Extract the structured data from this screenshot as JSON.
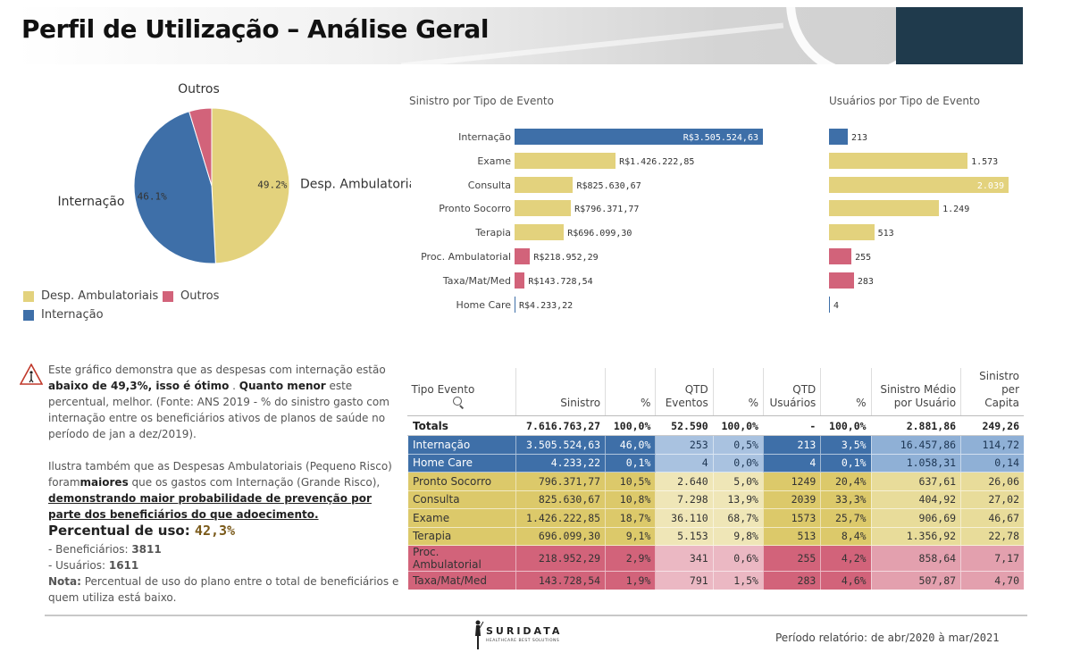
{
  "header": {
    "title": "Perfil de Utilização – Análise Geral"
  },
  "colors": {
    "blue": "#3e6fa8",
    "yellow": "#dcc96a",
    "red": "#d2637a"
  },
  "chart_data": [
    {
      "type": "pie",
      "title": "",
      "slices": [
        {
          "name": "Desp. Ambulatoriais",
          "value": 49.2,
          "label": "49.2%",
          "color": "#e3d27d"
        },
        {
          "name": "Internação",
          "value": 46.1,
          "label": "46.1%",
          "color": "#3e6fa8"
        },
        {
          "name": "Outros",
          "value": 4.7,
          "label": "",
          "color": "#d2637a"
        }
      ],
      "legend": [
        {
          "name": "Desp. Ambulatoriais",
          "color": "#e3d27d"
        },
        {
          "name": "Outros",
          "color": "#d2637a"
        },
        {
          "name": "Internação",
          "color": "#3e6fa8"
        }
      ],
      "legend_position": "bottom-left"
    },
    {
      "type": "bar",
      "orientation": "horizontal",
      "title": "Sinistro por Tipo de Evento",
      "categories": [
        "Internação",
        "Exame",
        "Consulta",
        "Pronto Socorro",
        "Terapia",
        "Proc. Ambulatorial",
        "Taxa/Mat/Med",
        "Home Care"
      ],
      "values": [
        3505524.63,
        1426222.85,
        825630.67,
        796371.77,
        696099.3,
        218952.29,
        143728.54,
        4233.22
      ],
      "labels": [
        "R$3.505.524,63",
        "R$1.426.222,85",
        "R$825.630,67",
        "R$796.371,77",
        "R$696.099,30",
        "R$218.952,29",
        "R$143.728,54",
        "R$4.233,22"
      ],
      "colors": [
        "#3e6fa8",
        "#e3d27d",
        "#e3d27d",
        "#e3d27d",
        "#e3d27d",
        "#d2637a",
        "#d2637a",
        "#3e6fa8"
      ],
      "xlim": [
        0,
        3505524.63
      ]
    },
    {
      "type": "bar",
      "orientation": "horizontal",
      "title": "Usuários por Tipo de Evento",
      "categories": [
        "Internação",
        "Exame",
        "Consulta",
        "Pronto Socorro",
        "Terapia",
        "Proc. Ambulatorial",
        "Taxa/Mat/Med",
        "Home Care"
      ],
      "values": [
        213,
        1573,
        2039,
        1249,
        513,
        255,
        283,
        4
      ],
      "labels": [
        "213",
        "1.573",
        "2.039",
        "1.249",
        "513",
        "255",
        "283",
        "4"
      ],
      "colors": [
        "#3e6fa8",
        "#e3d27d",
        "#e3d27d",
        "#e3d27d",
        "#e3d27d",
        "#d2637a",
        "#d2637a",
        "#3e6fa8"
      ],
      "xlim": [
        0,
        2039
      ]
    },
    {
      "type": "table",
      "columns": [
        "Tipo Evento",
        "Sinistro",
        "%",
        "QTD Eventos",
        "%",
        "QTD Usuários",
        "%",
        "Sinistro Médio por Usuário",
        "Sinistro per Capita"
      ],
      "column_lines": [
        [
          "Tipo Evento"
        ],
        [
          "Sinistro"
        ],
        [
          "%"
        ],
        [
          "QTD",
          "Eventos"
        ],
        [
          "%"
        ],
        [
          "QTD",
          "Usuários"
        ],
        [
          "%"
        ],
        [
          "Sinistro Médio",
          "por Usuário"
        ],
        [
          "Sinistro",
          "per Capita"
        ]
      ],
      "totals": [
        "Totals",
        "7.616.763,27",
        "100,0%",
        "52.590",
        "100,0%",
        "-",
        "100,0%",
        "2.881,86",
        "249,26"
      ],
      "rows": [
        {
          "group": "blue",
          "cells": [
            "Internação",
            "3.505.524,63",
            "46,0%",
            "253",
            "0,5%",
            "213",
            "3,5%",
            "16.457,86",
            "114,72"
          ]
        },
        {
          "group": "blue",
          "cells": [
            "Home Care",
            "4.233,22",
            "0,1%",
            "4",
            "0,0%",
            "4",
            "0,1%",
            "1.058,31",
            "0,14"
          ]
        },
        {
          "group": "yellow",
          "cells": [
            "Pronto Socorro",
            "796.371,77",
            "10,5%",
            "2.640",
            "5,0%",
            "1249",
            "20,4%",
            "637,61",
            "26,06"
          ]
        },
        {
          "group": "yellow",
          "cells": [
            "Consulta",
            "825.630,67",
            "10,8%",
            "7.298",
            "13,9%",
            "2039",
            "33,3%",
            "404,92",
            "27,02"
          ]
        },
        {
          "group": "yellow",
          "cells": [
            "Exame",
            "1.426.222,85",
            "18,7%",
            "36.110",
            "68,7%",
            "1573",
            "25,7%",
            "906,69",
            "46,67"
          ]
        },
        {
          "group": "yellow",
          "cells": [
            "Terapia",
            "696.099,30",
            "9,1%",
            "5.153",
            "9,8%",
            "513",
            "8,4%",
            "1.356,92",
            "22,78"
          ]
        },
        {
          "group": "red",
          "cells": [
            "Proc. Ambulatorial",
            "218.952,29",
            "2,9%",
            "341",
            "0,6%",
            "255",
            "4,2%",
            "858,64",
            "7,17"
          ]
        },
        {
          "group": "red",
          "cells": [
            "Taxa/Mat/Med",
            "143.728,54",
            "1,9%",
            "791",
            "1,5%",
            "283",
            "4,6%",
            "507,87",
            "4,70"
          ]
        }
      ]
    }
  ],
  "notes": {
    "p1_a": "Este gráfico demonstra que as despesas com internação estão ",
    "p1_b": "abaixo de 49,3%, isso é ótimo",
    "p1_c": " . ",
    "p1_d": "Quanto menor",
    "p1_e": " este percentual, melhor.",
    "p1_f": "(Fonte: ANS 2019 - % do sinistro gasto com internação entre os beneficiários ativos de planos de saúde no período de jan a dez/2019).",
    "p2_a": "Ilustra também que as Despesas Ambulatoriais (Pequeno Risco) foram",
    "p2_b": "maiores",
    "p2_c": " que os gastos com Internação (Grande Risco), ",
    "p2_d": "demonstrando maior probabilidade de prevenção por parte dos beneficiários do que adoecimento."
  },
  "usage": {
    "title": "Percentual de uso: ",
    "pct": "42,3%",
    "benef_label": "- Beneficiários: ",
    "benef_value": "3811",
    "users_label": "- Usuários: ",
    "users_value": "1611",
    "note_label": "Nota:",
    "note_text": " Percentual de uso do plano entre o total de beneficiários e quem utiliza está baixo."
  },
  "footer": {
    "logo_text": "SURIDATA",
    "logo_sub": "HEALTHCARE BEST SOLUTIONS",
    "period_label": "Período relatório: de abr/",
    "period_y1": "2020",
    "period_mid": " à mar/",
    "period_y2": "2021"
  }
}
